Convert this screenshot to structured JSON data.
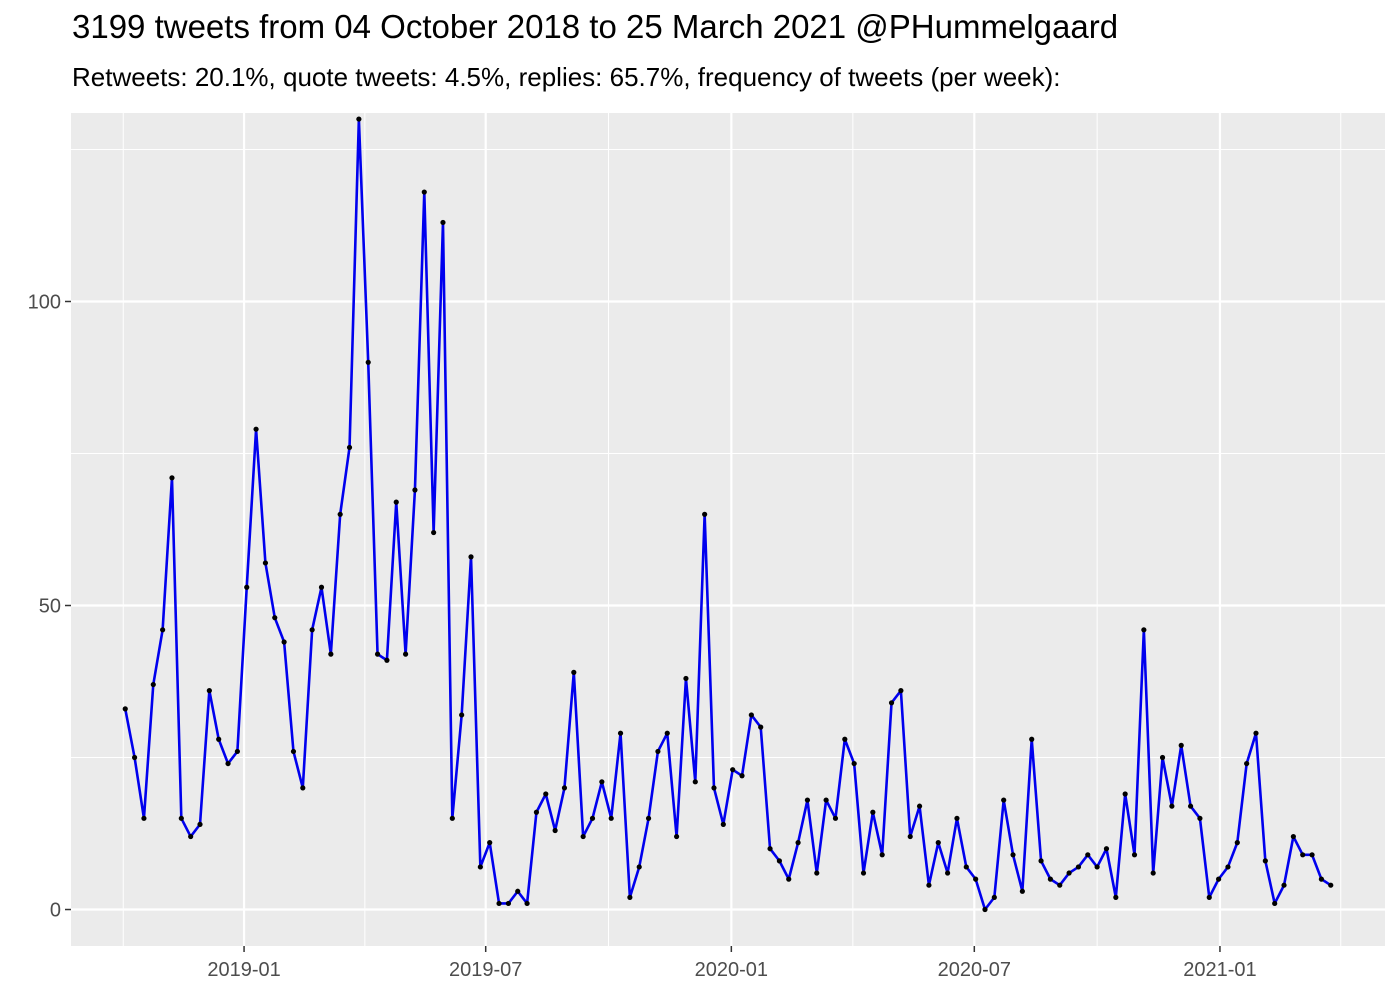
{
  "chart_data": {
    "type": "line",
    "title": "3199 tweets from 04 October 2018 to 25 March 2021 @PHummelgaard",
    "subtitle": "Retweets: 20.1%, quote tweets: 4.5%, replies: 65.7%, frequency of tweets (per week):",
    "xlabel": "",
    "ylabel": "",
    "x_start": "2018-10-04",
    "x_interval_days": 7,
    "ylim": [
      -6,
      131
    ],
    "y_ticks": [
      0,
      50,
      100
    ],
    "y_tick_labels": [
      "0",
      "50",
      "100"
    ],
    "x_ticks": [
      "2019-01-01",
      "2019-07-01",
      "2020-01-01",
      "2020-07-01",
      "2021-01-01"
    ],
    "x_tick_labels": [
      "2019-01",
      "2019-07",
      "2020-01",
      "2020-07",
      "2021-01"
    ],
    "grid": true,
    "line_color": "#0000ee",
    "point_color": "#000000",
    "panel_color": "#ebebeb",
    "grid_color": "#ffffff",
    "series": [
      {
        "values": [
          33,
          25,
          15,
          37,
          46,
          71,
          15,
          12,
          14,
          36,
          28,
          24,
          26,
          53,
          79,
          57,
          48,
          44,
          26,
          20,
          46,
          53,
          42,
          65,
          76,
          130,
          90,
          42,
          41,
          67,
          42,
          69,
          118,
          62,
          113,
          15,
          32,
          58,
          7,
          11,
          1,
          1,
          3,
          1,
          16,
          19,
          13,
          20,
          39,
          12,
          15,
          21,
          15,
          29,
          2,
          7,
          15,
          26,
          29,
          12,
          38,
          21,
          65,
          20,
          14,
          23,
          22,
          32,
          30,
          10,
          8,
          5,
          11,
          18,
          6,
          18,
          15,
          28,
          24,
          6,
          16,
          9,
          34,
          36,
          12,
          17,
          4,
          11,
          6,
          15,
          7,
          5,
          0,
          2,
          18,
          9,
          3,
          28,
          8,
          5,
          4,
          6,
          7,
          9,
          7,
          10,
          2,
          19,
          9,
          46,
          6,
          25,
          17,
          27,
          17,
          15,
          2,
          5,
          7,
          11,
          24,
          29,
          8,
          1,
          4,
          12,
          9,
          9,
          5,
          4
        ]
      }
    ]
  }
}
